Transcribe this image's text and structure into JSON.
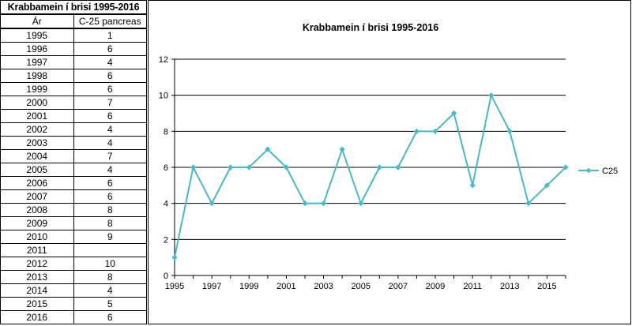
{
  "table": {
    "title": "Krabbamein í brisi 1995-2016",
    "header_year": "Ár",
    "header_value": "C-25 pancreas",
    "rows": [
      {
        "year": "1995",
        "value": "1"
      },
      {
        "year": "1996",
        "value": "6"
      },
      {
        "year": "1997",
        "value": "4"
      },
      {
        "year": "1998",
        "value": "6"
      },
      {
        "year": "1999",
        "value": "6"
      },
      {
        "year": "2000",
        "value": "7"
      },
      {
        "year": "2001",
        "value": "6"
      },
      {
        "year": "2002",
        "value": "4"
      },
      {
        "year": "2003",
        "value": "4"
      },
      {
        "year": "2004",
        "value": "7"
      },
      {
        "year": "2005",
        "value": "4"
      },
      {
        "year": "2006",
        "value": "6"
      },
      {
        "year": "2007",
        "value": "6"
      },
      {
        "year": "2008",
        "value": "8"
      },
      {
        "year": "2009",
        "value": "8"
      },
      {
        "year": "2010",
        "value": "9"
      },
      {
        "year": "2011",
        "value": ""
      },
      {
        "year": "2012",
        "value": "10"
      },
      {
        "year": "2013",
        "value": "8"
      },
      {
        "year": "2014",
        "value": "4"
      },
      {
        "year": "2015",
        "value": "5"
      },
      {
        "year": "2016",
        "value": "6"
      }
    ]
  },
  "chart_data": {
    "type": "line",
    "title": "Krabbamein í brisi  1995-2016",
    "x": [
      1995,
      1996,
      1997,
      1998,
      1999,
      2000,
      2001,
      2002,
      2003,
      2004,
      2005,
      2006,
      2007,
      2008,
      2009,
      2010,
      2011,
      2012,
      2013,
      2014,
      2015,
      2016
    ],
    "series": [
      {
        "name": "C25",
        "values": [
          1,
          6,
          4,
          6,
          6,
          7,
          6,
          4,
          4,
          7,
          4,
          6,
          6,
          8,
          8,
          9,
          5,
          10,
          8,
          4,
          5,
          6
        ],
        "color": "#4BB8C2"
      }
    ],
    "xticks": [
      "1995",
      "1997",
      "1999",
      "2001",
      "2003",
      "2005",
      "2007",
      "2009",
      "2011",
      "2013",
      "2015"
    ],
    "yticks": [
      "0",
      "2",
      "4",
      "6",
      "8",
      "10",
      "12"
    ],
    "ylim": [
      0,
      12
    ],
    "xlim": [
      1995,
      2016
    ],
    "grid": "horizontal",
    "legend": "right",
    "marker": "diamond"
  }
}
